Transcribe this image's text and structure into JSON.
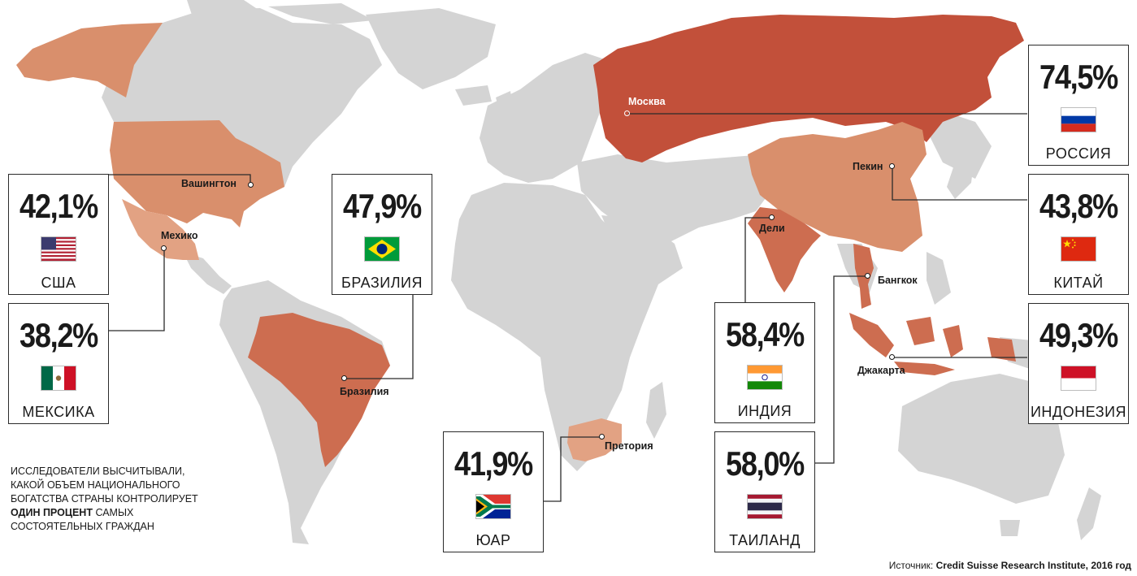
{
  "colors": {
    "land": "#d4d4d4",
    "light_tier": "#e2a283",
    "mid_tier": "#d98f6c",
    "high_tier": "#cd6d50",
    "top_tier": "#c2503a",
    "box_border": "#2b2b2b",
    "leader_line": "#2b2b2b"
  },
  "callouts": [
    {
      "id": "usa",
      "value": "42,1%",
      "country": "США",
      "flag": "flag-usa-icon"
    },
    {
      "id": "mexico",
      "value": "38,2%",
      "country": "МЕКСИКА",
      "flag": "flag-mexico-icon"
    },
    {
      "id": "brazil",
      "value": "47,9%",
      "country": "БРАЗИЛИЯ",
      "flag": "flag-brazil-icon"
    },
    {
      "id": "sa",
      "value": "41,9%",
      "country": "ЮАР",
      "flag": "flag-south-africa-icon"
    },
    {
      "id": "russia",
      "value": "74,5%",
      "country": "РОССИЯ",
      "flag": "flag-russia-icon"
    },
    {
      "id": "china",
      "value": "43,8%",
      "country": "КИТАЙ",
      "flag": "flag-china-icon"
    },
    {
      "id": "indonesia",
      "value": "49,3%",
      "country": "ИНДОНЕЗИЯ",
      "flag": "flag-indonesia-icon"
    },
    {
      "id": "india",
      "value": "58,4%",
      "country": "ИНДИЯ",
      "flag": "flag-india-icon"
    },
    {
      "id": "thailand",
      "value": "58,0%",
      "country": "ТАИЛАНД",
      "flag": "flag-thailand-icon"
    }
  ],
  "cities": {
    "washington": "Вашингтон",
    "mexico": "Мехико",
    "brasilia": "Бразилия",
    "pretoria": "Претория",
    "moscow": "Москва",
    "beijing": "Пекин",
    "delhi": "Дели",
    "bangkok": "Бангкок",
    "jakarta": "Джакарта"
  },
  "note": {
    "text_before": "Исследователи высчитывали, какой объем национального богатства страны контролирует",
    "emphasis": "один процент",
    "text_after": "самых состоятельных граждан"
  },
  "source": {
    "label": "Источник:",
    "name": "Credit Suisse Research Institute, 2016 год"
  }
}
